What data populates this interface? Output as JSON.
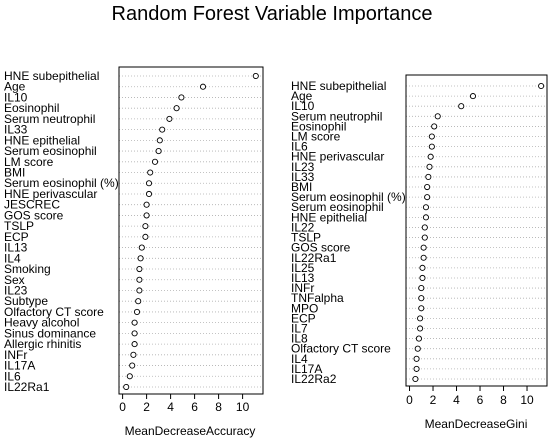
{
  "title": "Random Forest Variable Importance",
  "colors": {
    "point_stroke": "#000000",
    "guide": "#b0b0b0",
    "frame": "#000000"
  },
  "chart_data": [
    {
      "type": "scatter",
      "variant": "dotchart",
      "xlabel": "MeanDecreaseAccuracy",
      "xlim": [
        -0.3,
        11.7
      ],
      "xticks": [
        0,
        2,
        4,
        6,
        8,
        10
      ],
      "grid": "horizontal dotted guides",
      "categories": [
        "HNE subepithelial",
        "Age",
        "IL10",
        "Eosinophil",
        "Serum neutrophil",
        "IL33",
        "HNE epithelial",
        "Serum eosinophil",
        "LM score",
        "BMI",
        "Serum eosinophil (%)",
        "HNE perivascular",
        "JESCREC",
        "GOS score",
        "TSLP",
        "ECP",
        "IL13",
        "IL4",
        "Smoking",
        "Sex",
        "IL23",
        "Subtype",
        "Olfactory CT score",
        "Heavy alcohol",
        "Sinus dominance",
        "Allergic rhinitis",
        "INFr",
        "IL17A",
        "IL6",
        "IL22Ra1"
      ],
      "values": [
        11.1,
        6.7,
        4.9,
        4.5,
        3.9,
        3.3,
        3.1,
        3.0,
        2.7,
        2.3,
        2.2,
        2.2,
        2.0,
        2.0,
        1.9,
        1.9,
        1.6,
        1.5,
        1.4,
        1.4,
        1.4,
        1.3,
        1.2,
        1.0,
        1.0,
        1.0,
        0.9,
        0.8,
        0.6,
        0.3
      ]
    },
    {
      "type": "scatter",
      "variant": "dotchart",
      "xlabel": "MeanDecreaseGini",
      "xlim": [
        -0.3,
        11.7
      ],
      "xticks": [
        0,
        2,
        4,
        6,
        8,
        10
      ],
      "grid": "horizontal dotted guides",
      "categories": [
        "HNE subepithelial",
        "Age",
        "IL10",
        "Serum neutrophil",
        "Eosinophil",
        "LM score",
        "IL6",
        "HNE perivascular",
        "IL23",
        "IL33",
        "BMI",
        "Serum eosinophil (%)",
        "Serum eosinophil",
        "HNE epithelial",
        "IL22",
        "TSLP",
        "GOS score",
        "IL22Ra1",
        "IL25",
        "IL13",
        "INFr",
        "TNFalpha",
        "MPO",
        "ECP",
        "IL7",
        "IL8",
        "Olfactory CT score",
        "IL4",
        "IL17A",
        "IL22Ra2"
      ],
      "values": [
        11.2,
        5.4,
        4.4,
        2.4,
        2.1,
        1.9,
        1.9,
        1.8,
        1.7,
        1.6,
        1.5,
        1.5,
        1.4,
        1.4,
        1.3,
        1.3,
        1.2,
        1.2,
        1.1,
        1.1,
        1.0,
        1.0,
        1.0,
        0.9,
        0.9,
        0.8,
        0.7,
        0.6,
        0.6,
        0.5
      ]
    }
  ]
}
